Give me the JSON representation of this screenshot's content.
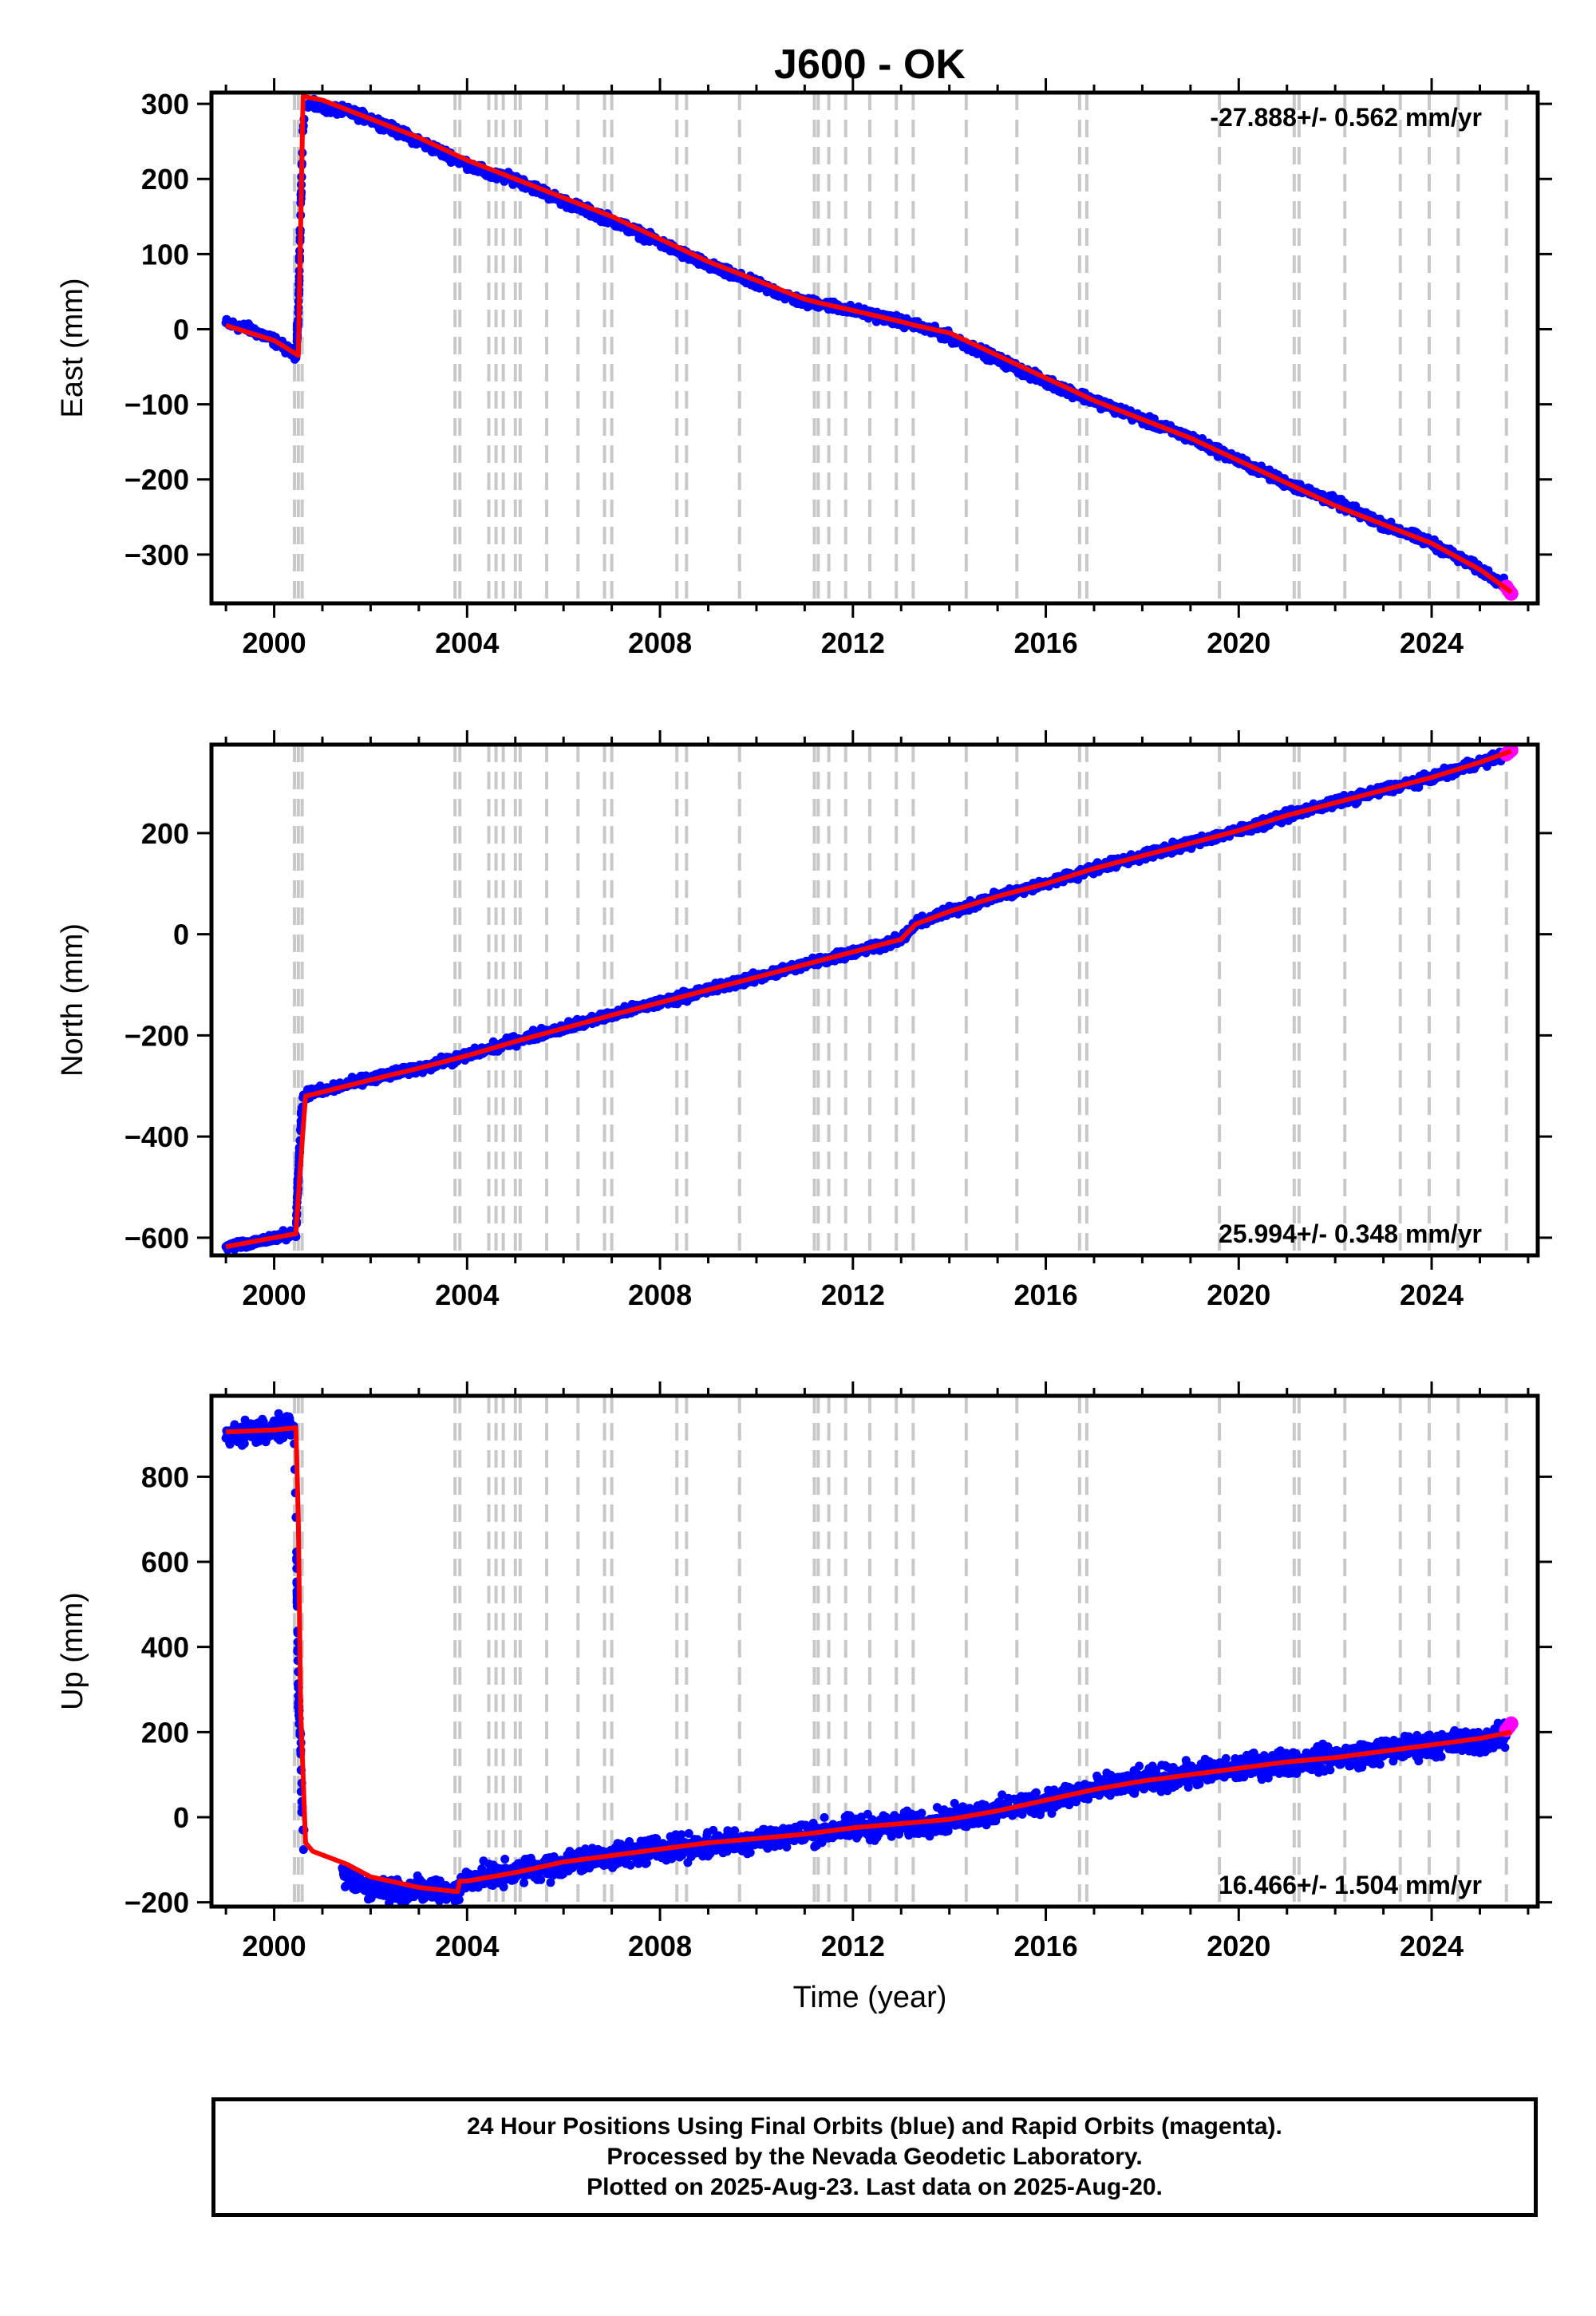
{
  "title": "J600 - OK",
  "xlabel": "Time (year)",
  "colors": {
    "final_orbits": "#0000ff",
    "rapid_orbits": "#ff00ff",
    "model_fit": "#ff0000",
    "event_lines": "#c8c8c8"
  },
  "xticks": [
    "2000",
    "2004",
    "2008",
    "2012",
    "2016",
    "2020",
    "2024"
  ],
  "event_lines_years": [
    2000.42,
    2000.5,
    2000.58,
    2003.75,
    2003.85,
    2004.45,
    2004.6,
    2004.75,
    2005.0,
    2005.1,
    2005.65,
    2006.3,
    2006.85,
    2007.0,
    2008.35,
    2008.55,
    2009.65,
    2011.2,
    2011.28,
    2011.5,
    2011.85,
    2012.35,
    2012.9,
    2013.25,
    2014.35,
    2015.4,
    2016.7,
    2016.85,
    2019.6,
    2021.15,
    2021.25,
    2022.2,
    2023.35,
    2023.95,
    2024.55,
    2025.55
  ],
  "chart_data": [
    {
      "type": "scatter",
      "panel": "east",
      "ylabel": "East (mm)",
      "ylim": [
        -365,
        315
      ],
      "yticks": [
        "300",
        "200",
        "100",
        "0",
        "−100",
        "−200",
        "−300"
      ],
      "ytick_values": [
        300,
        200,
        100,
        0,
        -100,
        -200,
        -300
      ],
      "xlim": [
        1998.7,
        2026.2
      ],
      "rate_label": "-27.888+/- 0.562 mm/yr",
      "rate_position": "top-right",
      "series": [
        {
          "role": "final_orbits",
          "x": [
            1999.0,
            1999.5,
            2000.0,
            2000.45,
            2000.5,
            2000.55,
            2000.6,
            2000.7,
            2001.0,
            2001.5,
            2002.0,
            2003.0,
            2004.0,
            2004.5,
            2005.0,
            2006.0,
            2007.0,
            2008.0,
            2009.0,
            2010.0,
            2011.0,
            2011.3,
            2012.0,
            2013.0,
            2013.3,
            2014.0,
            2015.0,
            2016.0,
            2017.0,
            2018.0,
            2019.0,
            2020.0,
            2021.0,
            2022.0,
            2023.0,
            2024.0,
            2025.0,
            2025.55
          ],
          "y": [
            8,
            0,
            -15,
            -35,
            20,
            160,
            270,
            300,
            295,
            290,
            280,
            250,
            220,
            205,
            200,
            170,
            145,
            115,
            85,
            60,
            35,
            35,
            25,
            10,
            5,
            -10,
            -40,
            -70,
            -95,
            -120,
            -145,
            -175,
            -205,
            -230,
            -260,
            -285,
            -320,
            -340
          ]
        },
        {
          "role": "model_fit",
          "x": [
            1999.0,
            2000.0,
            2000.5,
            2000.6,
            2001.0,
            2002.0,
            2003.0,
            2004.0,
            2005.0,
            2006.0,
            2007.0,
            2008.0,
            2009.0,
            2010.0,
            2011.0,
            2011.3,
            2012.0,
            2013.0,
            2013.3,
            2014.0,
            2015.0,
            2016.0,
            2017.0,
            2018.0,
            2019.0,
            2020.0,
            2021.0,
            2022.0,
            2023.0,
            2024.0,
            2025.0,
            2025.65
          ],
          "y": [
            5,
            -15,
            -35,
            310,
            305,
            280,
            255,
            225,
            200,
            175,
            150,
            120,
            90,
            65,
            40,
            35,
            25,
            10,
            5,
            -5,
            -35,
            -65,
            -95,
            -120,
            -145,
            -175,
            -205,
            -235,
            -260,
            -285,
            -320,
            -350
          ]
        },
        {
          "role": "rapid_orbits",
          "x": [
            2025.55,
            2025.6,
            2025.65
          ],
          "y": [
            -343,
            -348,
            -352
          ]
        }
      ]
    },
    {
      "type": "scatter",
      "panel": "north",
      "ylabel": "North (mm)",
      "ylim": [
        -635,
        375
      ],
      "yticks": [
        "200",
        "0",
        "−200",
        "−400",
        "−600"
      ],
      "ytick_values": [
        200,
        0,
        -200,
        -400,
        -600
      ],
      "xlim": [
        1998.7,
        2026.2
      ],
      "rate_label": "25.994+/- 0.348 mm/yr",
      "rate_position": "bottom-right",
      "series": [
        {
          "role": "final_orbits",
          "x": [
            1999.0,
            1999.5,
            2000.0,
            2000.45,
            2000.5,
            2000.55,
            2000.6,
            2000.7,
            2001.0,
            2002.0,
            2003.0,
            2004.0,
            2005.0,
            2006.0,
            2007.0,
            2008.0,
            2009.0,
            2010.0,
            2011.0,
            2012.0,
            2013.0,
            2013.3,
            2014.0,
            2015.0,
            2016.0,
            2017.0,
            2018.0,
            2019.0,
            2020.0,
            2021.0,
            2022.0,
            2023.0,
            2024.0,
            2025.0,
            2025.55
          ],
          "y": [
            -615,
            -612,
            -600,
            -590,
            -480,
            -380,
            -320,
            -315,
            -310,
            -285,
            -265,
            -240,
            -210,
            -185,
            -160,
            -135,
            -110,
            -85,
            -60,
            -35,
            -10,
            20,
            45,
            75,
            100,
            130,
            155,
            180,
            205,
            235,
            260,
            285,
            310,
            340,
            355
          ]
        },
        {
          "role": "model_fit",
          "x": [
            1999.0,
            2000.0,
            2000.45,
            2000.55,
            2000.65,
            2001.0,
            2002.0,
            2003.0,
            2004.0,
            2005.0,
            2006.0,
            2007.0,
            2008.0,
            2009.0,
            2010.0,
            2011.0,
            2012.0,
            2013.0,
            2013.3,
            2014.0,
            2015.0,
            2016.0,
            2017.0,
            2018.0,
            2019.0,
            2020.0,
            2021.0,
            2022.0,
            2023.0,
            2024.0,
            2025.0,
            2025.65
          ],
          "y": [
            -618,
            -600,
            -592,
            -450,
            -320,
            -312,
            -288,
            -265,
            -240,
            -212,
            -186,
            -160,
            -135,
            -110,
            -85,
            -60,
            -35,
            -10,
            20,
            45,
            75,
            100,
            130,
            155,
            180,
            205,
            235,
            260,
            285,
            310,
            340,
            362
          ]
        },
        {
          "role": "rapid_orbits",
          "x": [
            2025.55,
            2025.6,
            2025.65
          ],
          "y": [
            356,
            360,
            364
          ]
        }
      ]
    },
    {
      "type": "scatter",
      "panel": "up",
      "ylabel": "Up (mm)",
      "ylim": [
        -210,
        990
      ],
      "yticks": [
        "800",
        "600",
        "400",
        "200",
        "0",
        "−200"
      ],
      "ytick_values": [
        800,
        600,
        400,
        200,
        0,
        -200
      ],
      "xlim": [
        1998.7,
        2026.2
      ],
      "rate_label": "16.466+/- 1.504 mm/yr",
      "rate_position": "bottom-right",
      "series": [
        {
          "role": "final_orbits",
          "x": [
            1999.0,
            1999.5,
            2000.0,
            2000.4,
            2000.45,
            2000.5,
            2000.55,
            2000.6,
            2000.7,
            2001.5,
            2002.0,
            2003.0,
            2003.8,
            2004.0,
            2005.0,
            2006.0,
            2007.0,
            2008.0,
            2009.0,
            2010.0,
            2011.0,
            2012.0,
            2013.0,
            2014.0,
            2015.0,
            2016.0,
            2017.0,
            2018.0,
            2019.0,
            2020.0,
            2021.0,
            2022.0,
            2023.0,
            2024.0,
            2025.0,
            2025.55
          ],
          "y": [
            900,
            905,
            910,
            925,
            700,
            300,
            150,
            -60,
            -80,
            -140,
            -165,
            -170,
            -175,
            -145,
            -130,
            -110,
            -90,
            -75,
            -65,
            -50,
            -40,
            -25,
            -20,
            -5,
            15,
            40,
            65,
            85,
            100,
            115,
            130,
            140,
            155,
            170,
            180,
            190
          ]
        },
        {
          "role": "model_fit",
          "x": [
            1999.0,
            2000.0,
            2000.45,
            2000.5,
            2000.55,
            2000.65,
            2000.8,
            2001.5,
            2002.0,
            2003.0,
            2003.8,
            2003.85,
            2004.0,
            2005.0,
            2006.0,
            2007.0,
            2008.0,
            2009.0,
            2010.0,
            2011.0,
            2012.0,
            2013.0,
            2014.0,
            2015.0,
            2016.0,
            2017.0,
            2018.0,
            2019.0,
            2020.0,
            2021.0,
            2022.0,
            2023.0,
            2024.0,
            2025.0,
            2025.65
          ],
          "y": [
            905,
            910,
            915,
            700,
            250,
            -60,
            -80,
            -110,
            -140,
            -165,
            -175,
            -150,
            -150,
            -130,
            -105,
            -90,
            -75,
            -60,
            -50,
            -40,
            -25,
            -15,
            -5,
            15,
            40,
            65,
            85,
            100,
            115,
            130,
            140,
            155,
            170,
            185,
            200
          ]
        },
        {
          "role": "rapid_orbits",
          "x": [
            2025.55,
            2025.6,
            2025.65
          ],
          "y": [
            205,
            212,
            220
          ]
        }
      ]
    }
  ],
  "caption": {
    "line1": "24 Hour Positions Using Final Orbits (blue) and Rapid Orbits (magenta).",
    "line2": "Processed by the Nevada Geodetic Laboratory.",
    "line3": "Plotted on 2025-Aug-23. Last data on 2025-Aug-20."
  }
}
